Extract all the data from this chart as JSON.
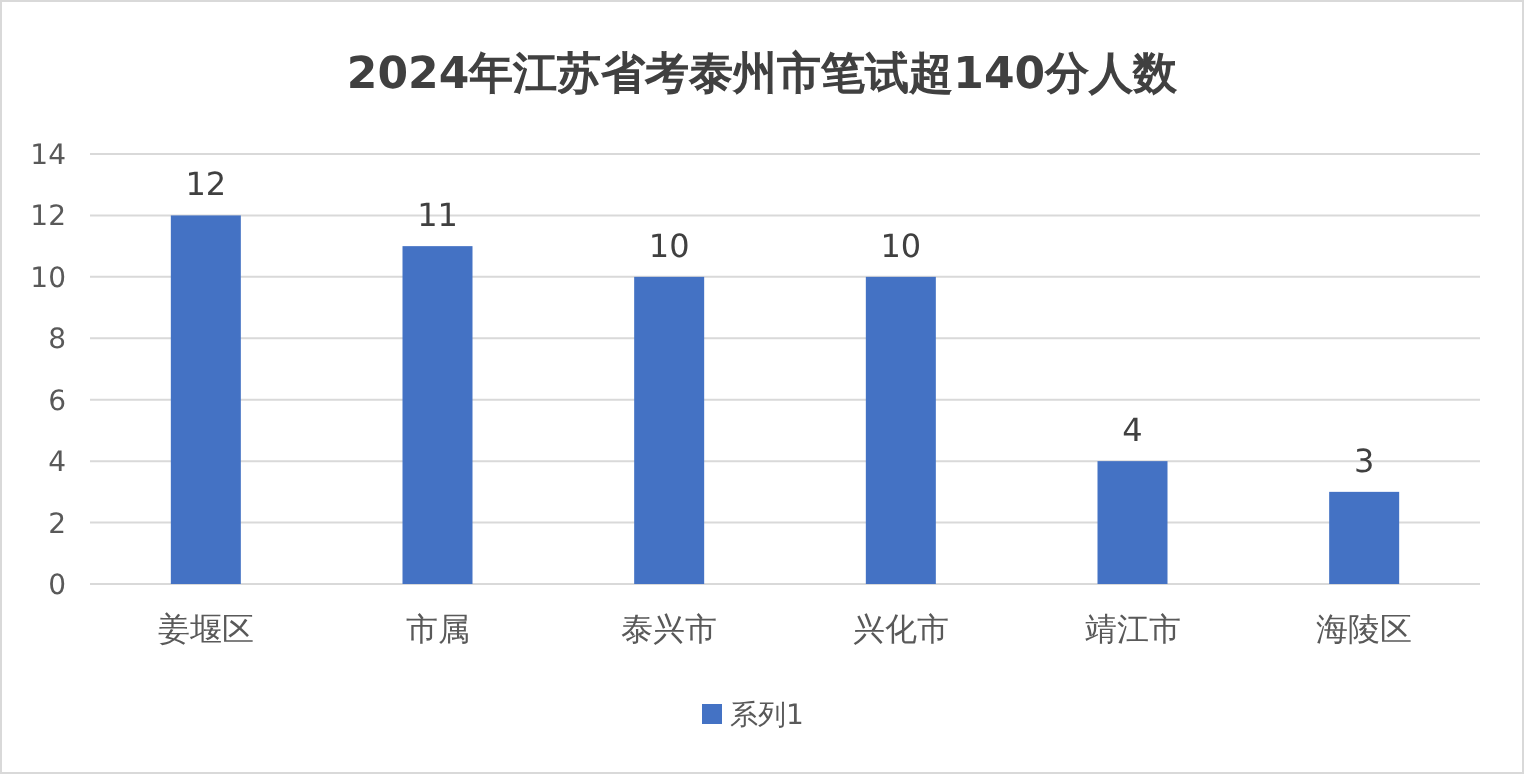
{
  "chart_data": {
    "type": "bar",
    "title": "2024年江苏省考泰州市笔试超140分人数",
    "categories": [
      "姜堰区",
      "市属",
      "泰兴市",
      "兴化市",
      "靖江市",
      "海陵区"
    ],
    "series": [
      {
        "name": "系列1",
        "color": "#4472c4",
        "values": [
          12,
          11,
          10,
          10,
          4,
          3
        ]
      }
    ],
    "ylim": [
      0,
      14
    ],
    "yticks": [
      0,
      2,
      4,
      6,
      8,
      10,
      12,
      14
    ],
    "grid": "y",
    "legend": "bottom",
    "data_labels": true
  }
}
